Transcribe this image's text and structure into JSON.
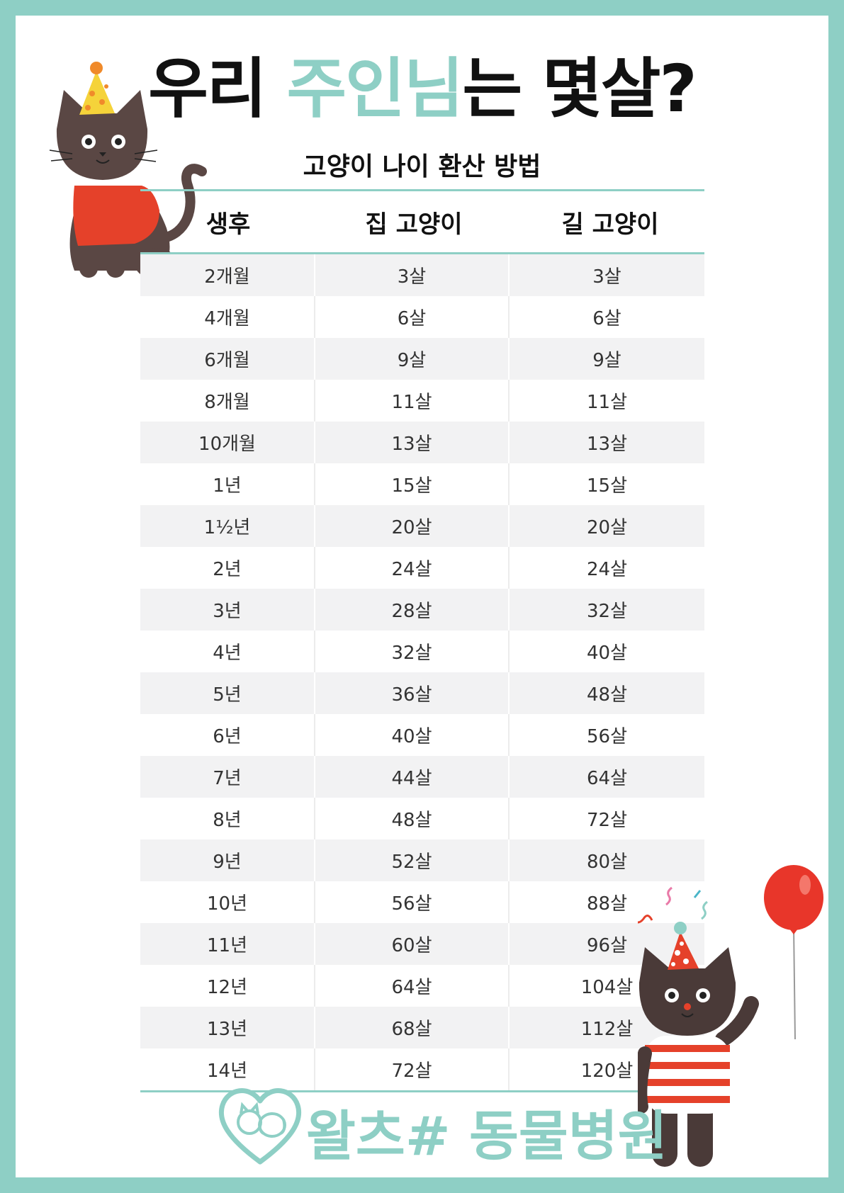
{
  "title": {
    "part1": "우리 ",
    "highlight": "주인님",
    "part2": "는 몇살?"
  },
  "subtitle": "고양이 나이 환산 방법",
  "table": {
    "headers": [
      "생후",
      "집 고양이",
      "길 고양이"
    ],
    "rows": [
      [
        "2개월",
        "3살",
        "3살"
      ],
      [
        "4개월",
        "6살",
        "6살"
      ],
      [
        "6개월",
        "9살",
        "9살"
      ],
      [
        "8개월",
        "11살",
        "11살"
      ],
      [
        "10개월",
        "13살",
        "13살"
      ],
      [
        "1년",
        "15살",
        "15살"
      ],
      [
        "1½년",
        "20살",
        "20살"
      ],
      [
        "2년",
        "24살",
        "24살"
      ],
      [
        "3년",
        "28살",
        "32살"
      ],
      [
        "4년",
        "32살",
        "40살"
      ],
      [
        "5년",
        "36살",
        "48살"
      ],
      [
        "6년",
        "40살",
        "56살"
      ],
      [
        "7년",
        "44살",
        "64살"
      ],
      [
        "8년",
        "48살",
        "72살"
      ],
      [
        "9년",
        "52살",
        "80살"
      ],
      [
        "10년",
        "56살",
        "88살"
      ],
      [
        "11년",
        "60살",
        "96살"
      ],
      [
        "12년",
        "64살",
        "104살"
      ],
      [
        "13년",
        "68살",
        "112살"
      ],
      [
        "14년",
        "72살",
        "120살"
      ]
    ]
  },
  "logo": {
    "text": "왈츠# 동물병원",
    "icon": "heart-dog-cat-icon"
  },
  "colors": {
    "accent": "#8ecfc5",
    "cat_body": "#5a4744",
    "sweater": "#e5412a",
    "hat": "#f5d33a",
    "balloon": "#e8362a"
  }
}
